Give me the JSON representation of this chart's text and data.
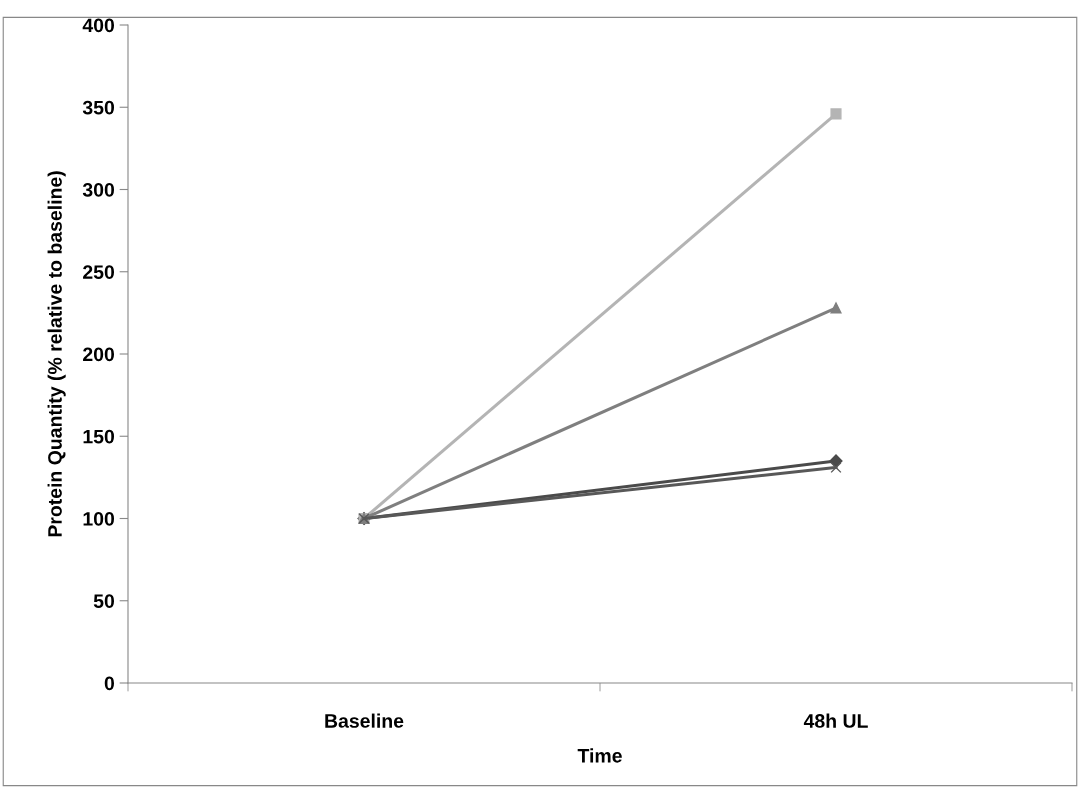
{
  "chart_data": {
    "type": "line",
    "xlabel": "Time",
    "ylabel": "Protein Quantity (% relative to baseline)",
    "categories": [
      "Baseline",
      "48h UL"
    ],
    "series": [
      {
        "color": "#4a4a4a",
        "marker": "diamond",
        "values": [
          100,
          135
        ]
      },
      {
        "color": "#b4b4b4",
        "marker": "square",
        "values": [
          100,
          346
        ]
      },
      {
        "color": "#7f7f7f",
        "marker": "triangle",
        "values": [
          100,
          228
        ]
      },
      {
        "color": "#585858",
        "marker": "cross",
        "values": [
          100,
          131
        ]
      }
    ],
    "ylim": [
      0,
      400
    ],
    "yticks": [
      0,
      50,
      100,
      150,
      200,
      250,
      300,
      350,
      400
    ],
    "grid": false
  }
}
